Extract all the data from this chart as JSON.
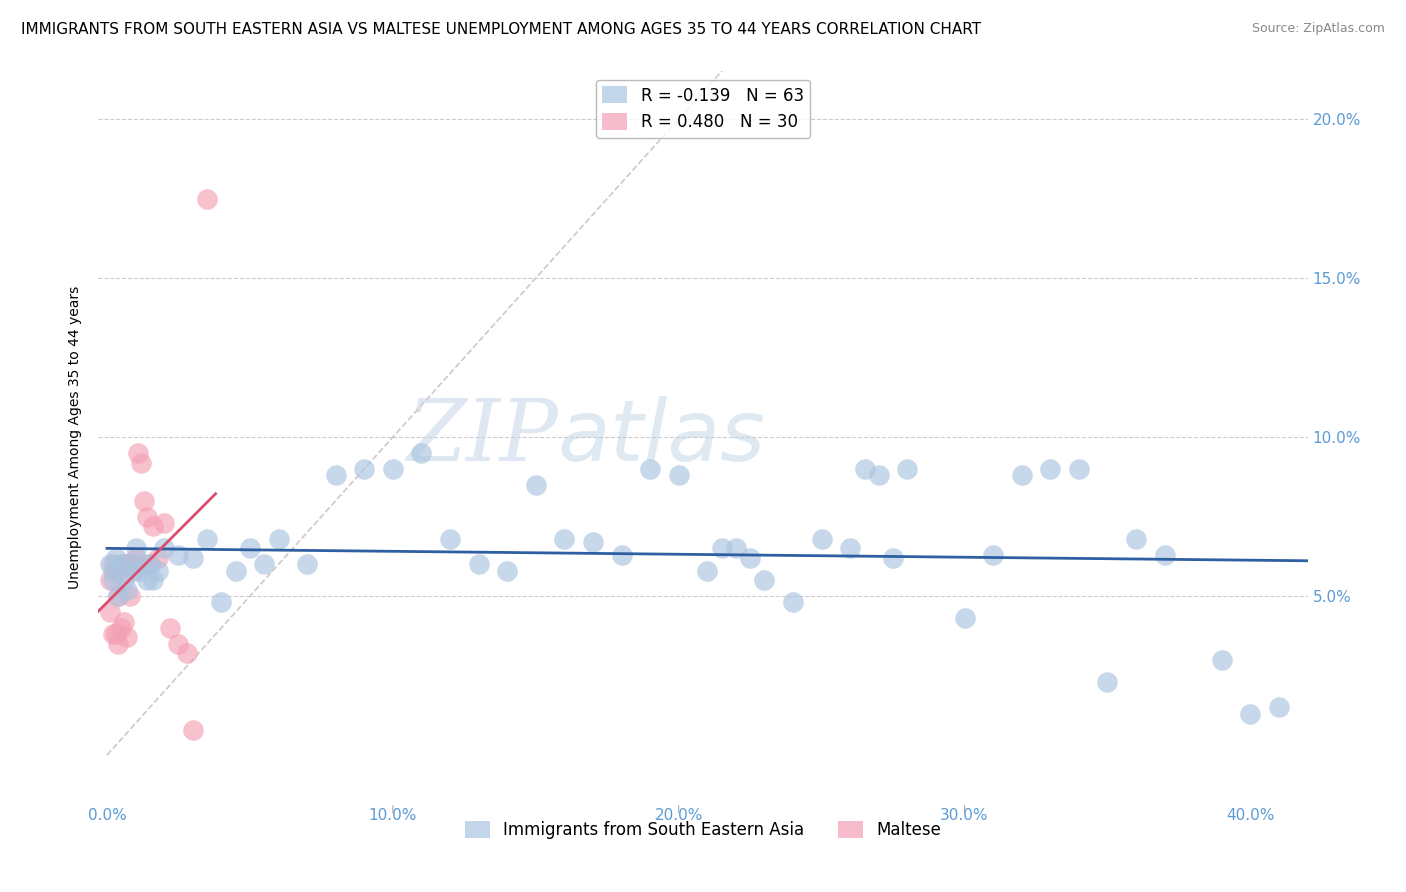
{
  "title": "IMMIGRANTS FROM SOUTH EASTERN ASIA VS MALTESE UNEMPLOYMENT AMONG AGES 35 TO 44 YEARS CORRELATION CHART",
  "source": "Source: ZipAtlas.com",
  "tick_color": "#5b9bd5",
  "ylabel": "Unemployment Among Ages 35 to 44 years",
  "x_tick_labels": [
    "0.0%",
    "10.0%",
    "20.0%",
    "30.0%",
    "40.0%"
  ],
  "x_tick_values": [
    0.0,
    0.1,
    0.2,
    0.3,
    0.4
  ],
  "y_tick_labels": [
    "20.0%",
    "15.0%",
    "10.0%",
    "5.0%"
  ],
  "y_tick_values": [
    0.2,
    0.15,
    0.1,
    0.05
  ],
  "xlim": [
    -0.003,
    0.42
  ],
  "ylim": [
    -0.015,
    0.215
  ],
  "blue_color": "#aac4e0",
  "pink_color": "#f4a0b5",
  "blue_line_color": "#2e5fa3",
  "pink_line_color": "#d94f6e",
  "dashed_line_color": "#d0c8c8",
  "legend_r1": "R = -0.139",
  "legend_n1": "N = 63",
  "legend_r2": "R = 0.480",
  "legend_n2": "N = 30",
  "blue_scatter_x": [
    0.001,
    0.002,
    0.002,
    0.003,
    0.004,
    0.005,
    0.006,
    0.007,
    0.008,
    0.009,
    0.01,
    0.011,
    0.013,
    0.014,
    0.015,
    0.016,
    0.018,
    0.02,
    0.025,
    0.03,
    0.035,
    0.04,
    0.045,
    0.05,
    0.055,
    0.06,
    0.07,
    0.08,
    0.09,
    0.1,
    0.11,
    0.12,
    0.13,
    0.14,
    0.15,
    0.16,
    0.17,
    0.18,
    0.19,
    0.2,
    0.21,
    0.215,
    0.22,
    0.225,
    0.23,
    0.24,
    0.25,
    0.26,
    0.265,
    0.27,
    0.275,
    0.28,
    0.3,
    0.31,
    0.32,
    0.33,
    0.34,
    0.35,
    0.36,
    0.37,
    0.39,
    0.4,
    0.41
  ],
  "blue_scatter_y": [
    0.06,
    0.058,
    0.055,
    0.062,
    0.05,
    0.06,
    0.055,
    0.052,
    0.06,
    0.058,
    0.065,
    0.058,
    0.06,
    0.055,
    0.06,
    0.055,
    0.058,
    0.065,
    0.063,
    0.062,
    0.068,
    0.048,
    0.058,
    0.065,
    0.06,
    0.068,
    0.06,
    0.088,
    0.09,
    0.09,
    0.095,
    0.068,
    0.06,
    0.058,
    0.085,
    0.068,
    0.067,
    0.063,
    0.09,
    0.088,
    0.058,
    0.065,
    0.065,
    0.062,
    0.055,
    0.048,
    0.068,
    0.065,
    0.09,
    0.088,
    0.062,
    0.09,
    0.043,
    0.063,
    0.088,
    0.09,
    0.09,
    0.023,
    0.068,
    0.063,
    0.03,
    0.013,
    0.015
  ],
  "pink_scatter_x": [
    0.001,
    0.001,
    0.002,
    0.002,
    0.003,
    0.003,
    0.004,
    0.004,
    0.005,
    0.005,
    0.006,
    0.006,
    0.007,
    0.007,
    0.008,
    0.009,
    0.01,
    0.011,
    0.012,
    0.013,
    0.014,
    0.015,
    0.016,
    0.018,
    0.02,
    0.022,
    0.025,
    0.028,
    0.03,
    0.035
  ],
  "pink_scatter_y": [
    0.055,
    0.045,
    0.06,
    0.038,
    0.058,
    0.038,
    0.05,
    0.035,
    0.058,
    0.04,
    0.06,
    0.042,
    0.06,
    0.037,
    0.05,
    0.06,
    0.062,
    0.095,
    0.092,
    0.08,
    0.075,
    0.06,
    0.072,
    0.062,
    0.073,
    0.04,
    0.035,
    0.032,
    0.008,
    0.175
  ],
  "watermark_zip": "ZIP",
  "watermark_atlas": "atlas",
  "title_fontsize": 11,
  "axis_label_fontsize": 10,
  "tick_fontsize": 11,
  "legend_fontsize": 12
}
